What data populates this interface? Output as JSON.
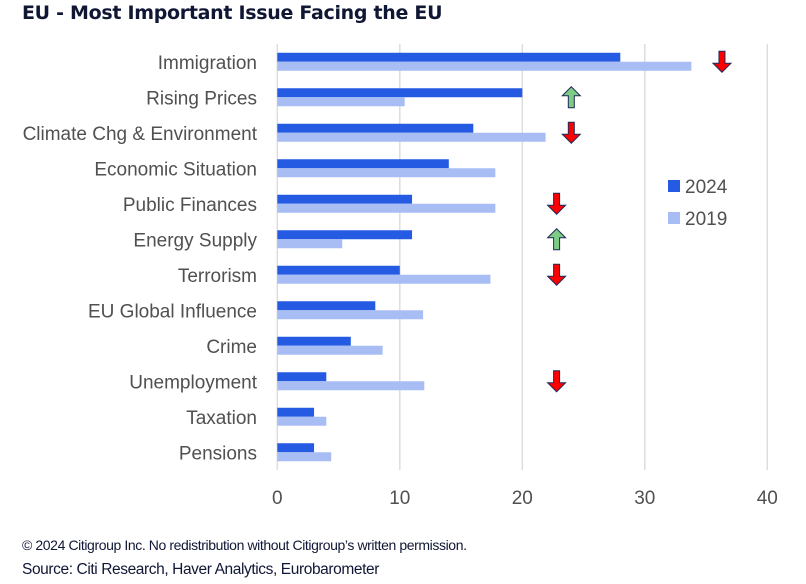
{
  "title": "EU - Most Important Issue Facing the EU",
  "footer": {
    "copyright": "© 2024 Citigroup Inc. No redistribution without Citigroup’s written permission.",
    "source": "Source: Citi Research, Haver Analytics, Eurobarometer"
  },
  "colors": {
    "series_2024": "#255BE3",
    "series_2019": "#A8BDF3",
    "arrow_down": "#FF0000",
    "arrow_up": "#7ECC84",
    "arrow_outline": "#1F2A5C",
    "gridline": "#DDDDDD"
  },
  "chart_data": {
    "type": "bar",
    "orientation": "horizontal",
    "title": "EU - Most Important Issue Facing the EU",
    "xlabel": "",
    "ylabel": "",
    "xlim": [
      0,
      40
    ],
    "xticks": [
      0,
      10,
      20,
      30,
      40
    ],
    "grid": "vertical",
    "legend_position": "right",
    "categories": [
      "Immigration",
      "Rising Prices",
      "Climate Chg & Environment",
      "Economic Situation",
      "Public Finances",
      "Energy Supply",
      "Terrorism",
      "EU Global Influence",
      "Crime",
      "Unemployment",
      "Taxation",
      "Pensions"
    ],
    "series": [
      {
        "name": "2024",
        "values": [
          28,
          20,
          16,
          14,
          11,
          11,
          10,
          8,
          6,
          4,
          3,
          3
        ]
      },
      {
        "name": "2019",
        "values": [
          33.8,
          10.4,
          21.9,
          17.8,
          17.8,
          5.3,
          17.4,
          11.9,
          8.6,
          12.0,
          4.0,
          4.4
        ]
      }
    ],
    "annotations": [
      {
        "category": "Immigration",
        "type": "arrow",
        "direction": "down",
        "x_value": 36.3
      },
      {
        "category": "Rising Prices",
        "type": "arrow",
        "direction": "up",
        "x_value": 24.0
      },
      {
        "category": "Climate Chg & Environment",
        "type": "arrow",
        "direction": "down",
        "x_value": 24.0
      },
      {
        "category": "Public Finances",
        "type": "arrow",
        "direction": "down",
        "x_value": 22.8
      },
      {
        "category": "Energy Supply",
        "type": "arrow",
        "direction": "up",
        "x_value": 22.8
      },
      {
        "category": "Terrorism",
        "type": "arrow",
        "direction": "down",
        "x_value": 22.8
      },
      {
        "category": "Unemployment",
        "type": "arrow",
        "direction": "down",
        "x_value": 22.8
      }
    ]
  }
}
